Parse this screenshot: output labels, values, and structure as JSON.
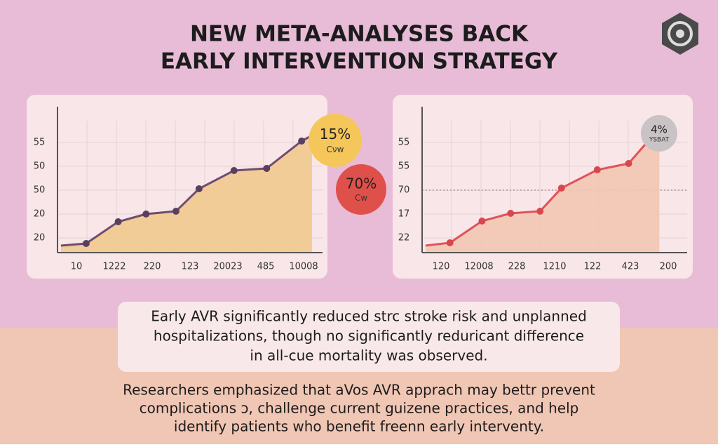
{
  "header": {
    "title_lines": [
      "NEW META-ANALYSES BACK",
      "EARLY INTERVENTION STRATEGY"
    ]
  },
  "chart_data": [
    {
      "type": "area",
      "y_labels": [
        "55",
        "50",
        "50",
        "20",
        "20"
      ],
      "x_labels": [
        "10",
        "1222",
        "220",
        "123",
        "20023",
        "485",
        "10008"
      ],
      "x": [
        1.3,
        10.8,
        22.9,
        33.4,
        44.7,
        53.4,
        66.6,
        78.9,
        92.1,
        96
      ],
      "values": [
        5,
        6.5,
        22,
        27.5,
        29.5,
        45.5,
        58.5,
        60,
        79.5,
        83.5
      ],
      "xlim": [
        0,
        100
      ],
      "ylim": [
        0,
        100
      ],
      "color": "#6e4d70",
      "fill": "#efc98e",
      "marker_color": "#5a3f5e",
      "annotations": [
        {
          "value": "15%",
          "label": "Cνw",
          "color": "#f5c75a"
        },
        {
          "value": "70%",
          "label": "Cw",
          "color": "#e0504a"
        }
      ]
    },
    {
      "type": "area",
      "y_labels": [
        "55",
        "55",
        "70",
        "17",
        "22"
      ],
      "x_labels": [
        "120",
        "12008",
        "228",
        "1210",
        "122",
        "423",
        "200"
      ],
      "x": [
        1.3,
        10.5,
        22.6,
        33.4,
        44.5,
        52.6,
        66.1,
        77.9,
        85.5,
        89.5
      ],
      "values": [
        5,
        7,
        22.5,
        28,
        29.5,
        46,
        59,
        63.5,
        80,
        88.5
      ],
      "xlim": [
        0,
        100
      ],
      "ylim": [
        0,
        100
      ],
      "color": "#e0525a",
      "fill": "#f2c7b3",
      "marker_color": "#d8474f",
      "annotations": [
        {
          "value": "4%",
          "label": "YSBAT",
          "color": "#c9c3c6"
        }
      ]
    }
  ],
  "summary_lines": [
    "Early AVR significantly reduced strc stroke risk and unplanned",
    "hospitalizations, though no significantly reduricant difference",
    "in all-cue mortality was observed."
  ],
  "note_lines": [
    "Researchers emphasized that aVos AVR apprach may bettr prevent",
    "complications ɔ, challenge current guizene practices, and help",
    "identify patients who benefit freenn early interventy."
  ]
}
